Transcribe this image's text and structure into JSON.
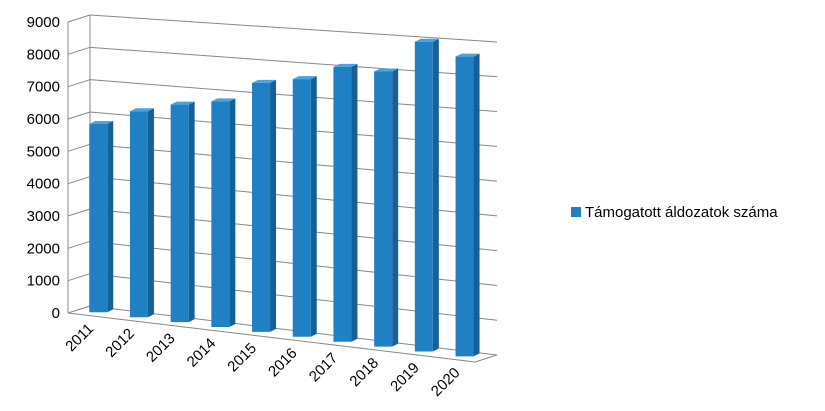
{
  "chart_data": {
    "type": "bar",
    "subtype": "3d-perspective",
    "categories": [
      "2011",
      "2012",
      "2013",
      "2014",
      "2015",
      "2016",
      "2017",
      "2018",
      "2019",
      "2020"
    ],
    "series": [
      {
        "name": "Támogatott áldozatok száma",
        "values": [
          5800,
          6300,
          6600,
          6800,
          7450,
          7650,
          8100,
          8050,
          9000,
          8650
        ]
      }
    ],
    "yticks": [
      "0",
      "1000",
      "2000",
      "3000",
      "4000",
      "5000",
      "6000",
      "7000",
      "8000",
      "9000"
    ],
    "ylim": [
      0,
      9000
    ],
    "grid": true,
    "legend_position": "right",
    "colors": {
      "bar_front": "#1f80c4",
      "bar_side": "#15609a",
      "bar_top": "#4aa3dd",
      "grid": "#888888"
    }
  }
}
